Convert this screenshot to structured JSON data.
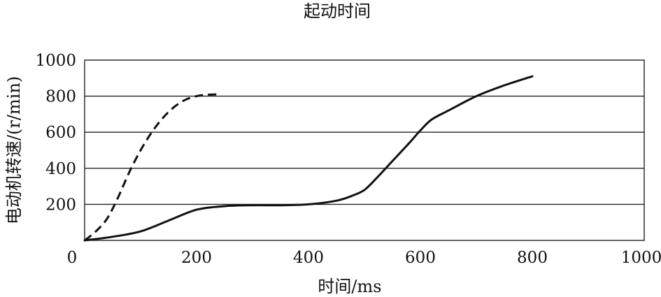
{
  "chart_data": {
    "type": "line",
    "title": "起动时间",
    "xlabel": "时间/ms",
    "ylabel": "电动机转速/(r/min)",
    "xlim": [
      0,
      1000
    ],
    "ylim": [
      0,
      1000
    ],
    "xticks": [
      "0",
      "200",
      "400",
      "600",
      "800",
      "1000"
    ],
    "yticks": [
      "200",
      "400",
      "600",
      "800",
      "1000"
    ],
    "grid": "horizontal",
    "legend": "none",
    "series": [
      {
        "style": "dashed",
        "x": [
          0,
          20,
          40,
          60,
          80,
          100,
          120,
          140,
          160,
          180,
          200,
          220,
          240
        ],
        "y": [
          0,
          50,
          120,
          240,
          380,
          500,
          600,
          680,
          740,
          780,
          800,
          808,
          810
        ]
      },
      {
        "style": "solid",
        "x": [
          0,
          50,
          100,
          150,
          200,
          250,
          300,
          350,
          400,
          450,
          480,
          500,
          520,
          550,
          580,
          600,
          620,
          650,
          700,
          750,
          800
        ],
        "y": [
          0,
          20,
          50,
          110,
          170,
          190,
          195,
          195,
          200,
          220,
          250,
          280,
          340,
          440,
          540,
          610,
          670,
          720,
          800,
          860,
          910
        ]
      }
    ]
  }
}
